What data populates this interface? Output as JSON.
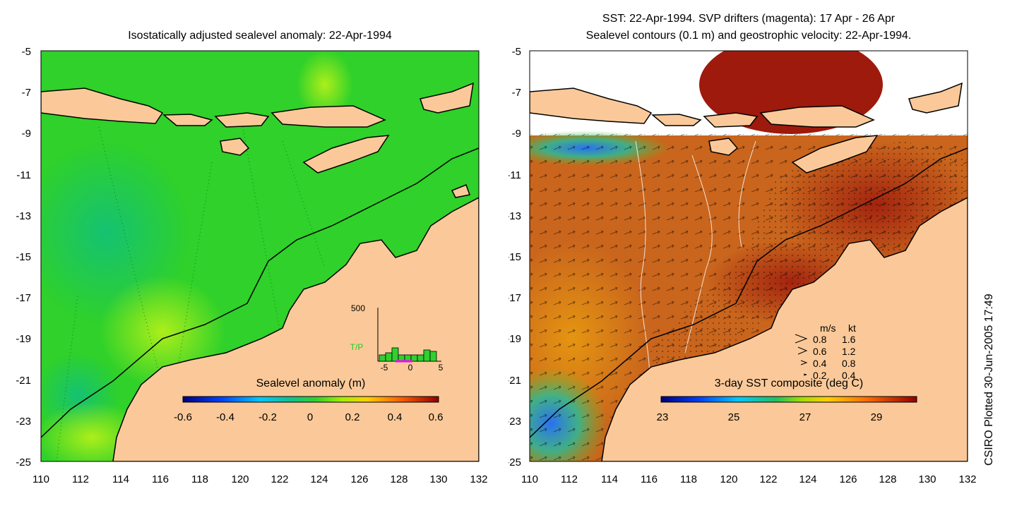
{
  "left_panel": {
    "title": "Isostatically adjusted sealevel anomaly: 22-Apr-1994",
    "colorbar_label": "Sealevel anomaly (m)",
    "colorbar_ticks": [
      "-0.6",
      "-0.4",
      "-0.2",
      "0",
      "0.2",
      "0.4",
      "0.6"
    ],
    "inset": {
      "ymax_label": "500",
      "series_label": "T/P",
      "x_ticks": [
        "-5",
        "0",
        "5"
      ]
    }
  },
  "right_panel": {
    "title_line1": "SST: 22-Apr-1994. SVP drifters (magenta): 17 Apr - 26 Apr",
    "title_line2": "Sealevel contours (0.1 m) and geostrophic velocity: 22-Apr-1994.",
    "colorbar_label": "3-day SST composite (deg C)",
    "colorbar_ticks": [
      "23",
      "25",
      "27",
      "29"
    ],
    "speed_legend": {
      "header_ms": "m/s",
      "header_kt": "kt",
      "rows": [
        {
          "ms": "0.8",
          "kt": "1.6"
        },
        {
          "ms": "0.6",
          "kt": "1.2"
        },
        {
          "ms": "0.4",
          "kt": "0.8"
        },
        {
          "ms": "0.2",
          "kt": "0.4"
        }
      ]
    }
  },
  "axes": {
    "lat_ticks": [
      "-5",
      "-7",
      "-9",
      "-11",
      "-13",
      "-15",
      "-17",
      "-19",
      "-21",
      "-23",
      "-25"
    ],
    "lon_ticks": [
      "110",
      "112",
      "114",
      "116",
      "118",
      "120",
      "122",
      "124",
      "126",
      "128",
      "130",
      "132"
    ]
  },
  "footer": {
    "credit": "CSIRO Plotted 30-Jun-2005 17:49"
  },
  "colors": {
    "land": "#fbc999",
    "sla_ocean": "#2fd12a",
    "sst_ocean": "#c9651d",
    "coast": "#000000"
  }
}
